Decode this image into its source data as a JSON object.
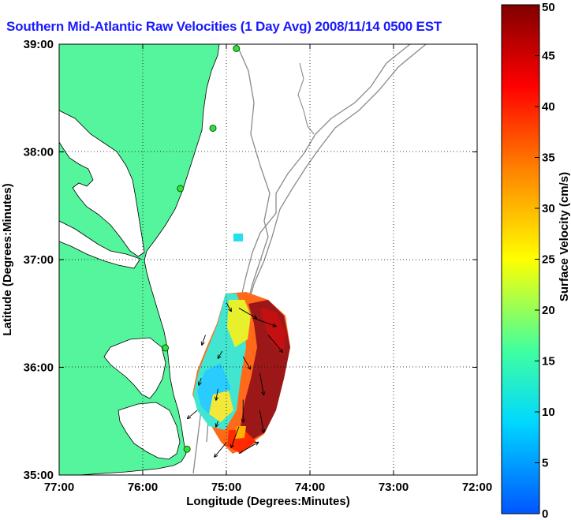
{
  "chart_data": {
    "type": "heatmap",
    "title": "Southern Mid-Atlantic Raw Velocities (1 Day Avg) 2008/11/14 0500 EST",
    "xlabel": "Longitude (Degrees:Minutes)",
    "ylabel": "Latitude (Degrees:Minutes)",
    "x_ticks": [
      "77:00",
      "76:00",
      "75:00",
      "74:00",
      "73:00",
      "72:00"
    ],
    "y_ticks": [
      "39:00",
      "38:00",
      "37:00",
      "36:00",
      "35:00"
    ],
    "xlim": [
      -77,
      -72
    ],
    "ylim": [
      35,
      39
    ],
    "grid": true,
    "colorbar": {
      "label": "Surface Velocity (cm/s)",
      "ticks": [
        0,
        5,
        10,
        15,
        20,
        25,
        30,
        35,
        40,
        45,
        50
      ],
      "range": [
        0,
        50
      ],
      "colors": [
        "#0055ff",
        "#00d8ff",
        "#40ffa0",
        "#ffff00",
        "#ff8000",
        "#ff0000",
        "#800000"
      ]
    },
    "land_color": "#55f59d",
    "stations": [
      {
        "lon": -74.88,
        "lat": 38.96
      },
      {
        "lon": -75.16,
        "lat": 38.22
      },
      {
        "lon": -75.55,
        "lat": 37.66
      },
      {
        "lon": -75.73,
        "lat": 36.18
      },
      {
        "lon": -75.47,
        "lat": 35.24
      }
    ],
    "velocity_field": [
      {
        "lon": -75.0,
        "lat": 36.6,
        "speed": 18,
        "dir": 150
      },
      {
        "lon": -74.85,
        "lat": 36.55,
        "speed": 45,
        "dir": 120
      },
      {
        "lon": -74.65,
        "lat": 36.45,
        "speed": 48,
        "dir": 110
      },
      {
        "lon": -74.5,
        "lat": 36.3,
        "speed": 50,
        "dir": 140
      },
      {
        "lon": -75.25,
        "lat": 36.3,
        "speed": 20,
        "dir": 200
      },
      {
        "lon": -75.05,
        "lat": 36.15,
        "speed": 14,
        "dir": 210
      },
      {
        "lon": -74.8,
        "lat": 36.1,
        "speed": 30,
        "dir": 150
      },
      {
        "lon": -74.6,
        "lat": 35.95,
        "speed": 50,
        "dir": 170
      },
      {
        "lon": -75.3,
        "lat": 35.9,
        "speed": 12,
        "dir": 200
      },
      {
        "lon": -75.1,
        "lat": 35.8,
        "speed": 22,
        "dir": 190
      },
      {
        "lon": -74.8,
        "lat": 35.7,
        "speed": 50,
        "dir": 180
      },
      {
        "lon": -74.6,
        "lat": 35.6,
        "speed": 50,
        "dir": 170
      },
      {
        "lon": -75.35,
        "lat": 35.6,
        "speed": 25,
        "dir": 230
      },
      {
        "lon": -75.1,
        "lat": 35.5,
        "speed": 8,
        "dir": 200
      },
      {
        "lon": -74.85,
        "lat": 35.45,
        "speed": 50,
        "dir": 200
      },
      {
        "lon": -75.0,
        "lat": 35.3,
        "speed": 40,
        "dir": 220
      },
      {
        "lon": -74.85,
        "lat": 35.2,
        "speed": 50,
        "dir": 60
      }
    ]
  }
}
